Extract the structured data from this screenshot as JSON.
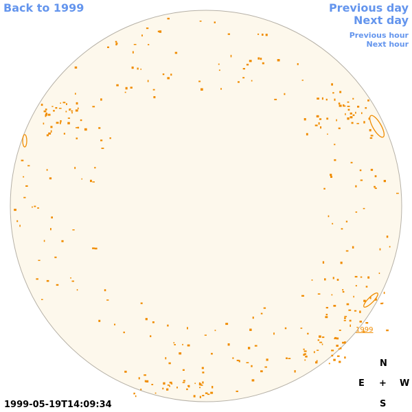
{
  "nav": {
    "back": "Back to 1999",
    "previous_day": "Previous day",
    "next_day": "Next day",
    "previous_hour": "Previous hour",
    "next_hour": "Next hour"
  },
  "region_label": "1999",
  "compass": {
    "north": "N",
    "east": "E",
    "center": "+",
    "west": "W",
    "south": "S"
  },
  "timestamp": "1999-05-19T14:09:34"
}
